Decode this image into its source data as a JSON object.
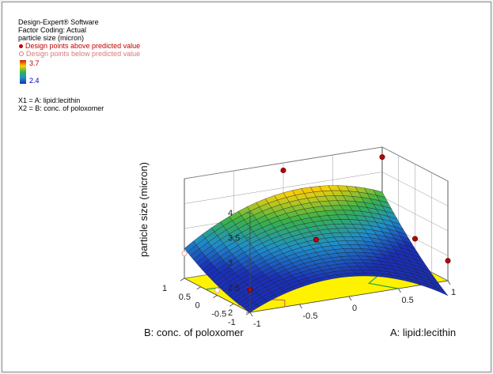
{
  "legend": {
    "software": "Design-Expert® Software",
    "factor_coding": "Factor Coding: Actual",
    "response": "particle size (micron)",
    "above_label": "Design points above predicted value",
    "below_label": "Design points below predicted value",
    "range_max": "3.7",
    "range_min": "2.4",
    "x1": "X1 = A: lipid:lecithin",
    "x2": "X2 = B: conc. of poloxomer"
  },
  "colors": {
    "above_point": "#c00000",
    "below_point": "#e8a0a0",
    "floor": "#fff200",
    "contour": "#20a050"
  },
  "chart_data": {
    "type": "surface3d",
    "zlabel": "particle size (micron)",
    "xlabel": "A: lipid:lecithin",
    "ylabel": "B: conc. of poloxomer",
    "zlim": [
      2,
      4
    ],
    "z_ticks": [
      "2",
      "2.5",
      "3",
      "3.5",
      "4"
    ],
    "x_ticks": [
      "-1",
      "-0.5",
      "0",
      "0.5",
      "1"
    ],
    "y_ticks": [
      "-1",
      "-0.5",
      "0",
      "0.5",
      "1"
    ],
    "grid": true,
    "color_range": [
      2.4,
      3.7
    ],
    "design_points": [
      {
        "A": -1,
        "B": -1,
        "z": 2.45
      },
      {
        "A": 1,
        "B": 1,
        "z": 3.8
      },
      {
        "A": 0,
        "B": 0,
        "z": 2.8
      },
      {
        "A": 1,
        "B": -1,
        "z": 2.4
      },
      {
        "A": -1,
        "B": 1,
        "z": 2.5
      },
      {
        "A": 0,
        "B": 1,
        "z": 3.85
      },
      {
        "A": -1,
        "B": 0,
        "z": 2.1
      },
      {
        "A": 1,
        "B": 0,
        "z": 2.5
      }
    ]
  }
}
